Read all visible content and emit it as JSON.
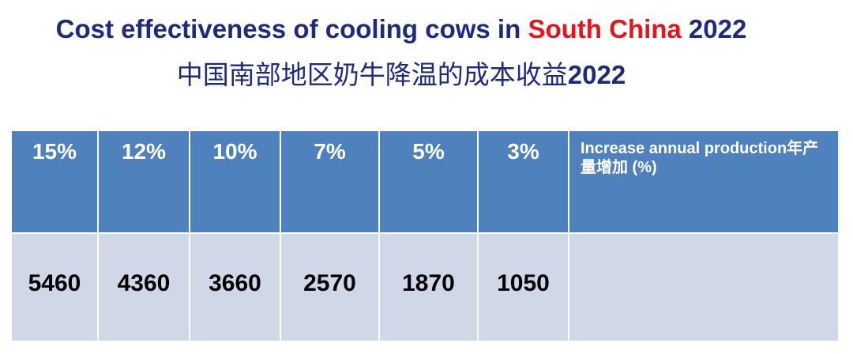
{
  "title": {
    "line1": {
      "before": "Cost effectiveness of cooling cows in ",
      "highlight": "South China",
      "after": " 2022"
    },
    "line2": {
      "text": "中国南部地区奶牛降温的成本收益",
      "year": "2022"
    }
  },
  "table": {
    "header": [
      "15%",
      "12%",
      "10%",
      "7%",
      "5%",
      "3%",
      "Increase annual production年产量增加 (%)"
    ],
    "rows": [
      [
        "5460",
        "4360",
        "3660",
        "2570",
        "1870",
        "1050"
      ]
    ]
  }
}
